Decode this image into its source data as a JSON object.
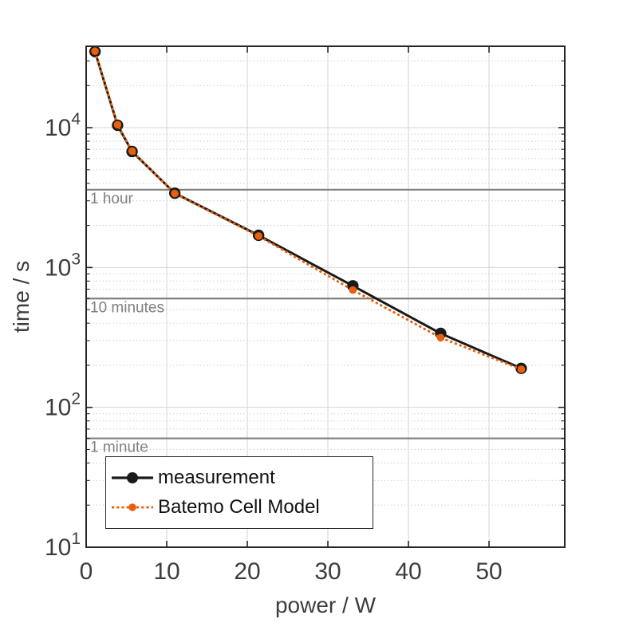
{
  "chart_data": {
    "type": "line",
    "title": "",
    "xlabel": "power / W",
    "ylabel": "time / s",
    "x_scale": "linear",
    "y_scale": "log",
    "xlim": [
      0,
      59.4
    ],
    "ylim": [
      10,
      38200
    ],
    "x_ticks": [
      0,
      10,
      20,
      30,
      40,
      50
    ],
    "y_tick_mantissa": "10",
    "y_tick_exponents": [
      1,
      2,
      3,
      4
    ],
    "grid": {
      "major": true,
      "minor_y": true,
      "major_color": "#d4d4d4",
      "minor_color": "#c9c9c9"
    },
    "axis_color": "#262626",
    "tick_label_color": "#3d3d3d",
    "series": [
      {
        "name": "measurement",
        "color": "#1a1a1a",
        "line_style": "solid",
        "line_width": 3,
        "marker": "circle",
        "marker_radius": 7.2,
        "points": [
          [
            1.1,
            35000
          ],
          [
            3.9,
            10400
          ],
          [
            5.7,
            6750
          ],
          [
            11,
            3400
          ],
          [
            21.4,
            1700
          ],
          [
            33.1,
            740
          ],
          [
            44,
            338
          ],
          [
            54,
            190
          ]
        ]
      },
      {
        "name": "Batemo Cell Model",
        "color": "#e8600c",
        "line_style": "dotted",
        "line_width": 2.8,
        "marker": "circle",
        "marker_radius": 4.8,
        "points": [
          [
            1.1,
            35200
          ],
          [
            3.9,
            10500
          ],
          [
            5.7,
            6800
          ],
          [
            11,
            3380
          ],
          [
            21.4,
            1680
          ],
          [
            33.1,
            690
          ],
          [
            44,
            315
          ],
          [
            54,
            187
          ]
        ]
      }
    ],
    "reference_lines": {
      "color": "#808080",
      "label_color": "#808080",
      "items": [
        {
          "label": "1 hour",
          "value": 3600
        },
        {
          "label": "10 minutes",
          "value": 600
        },
        {
          "label": "1 minute",
          "value": 60
        }
      ]
    },
    "legend": {
      "position": "lower-left",
      "entries": [
        "measurement",
        "Batemo Cell Model"
      ]
    }
  }
}
